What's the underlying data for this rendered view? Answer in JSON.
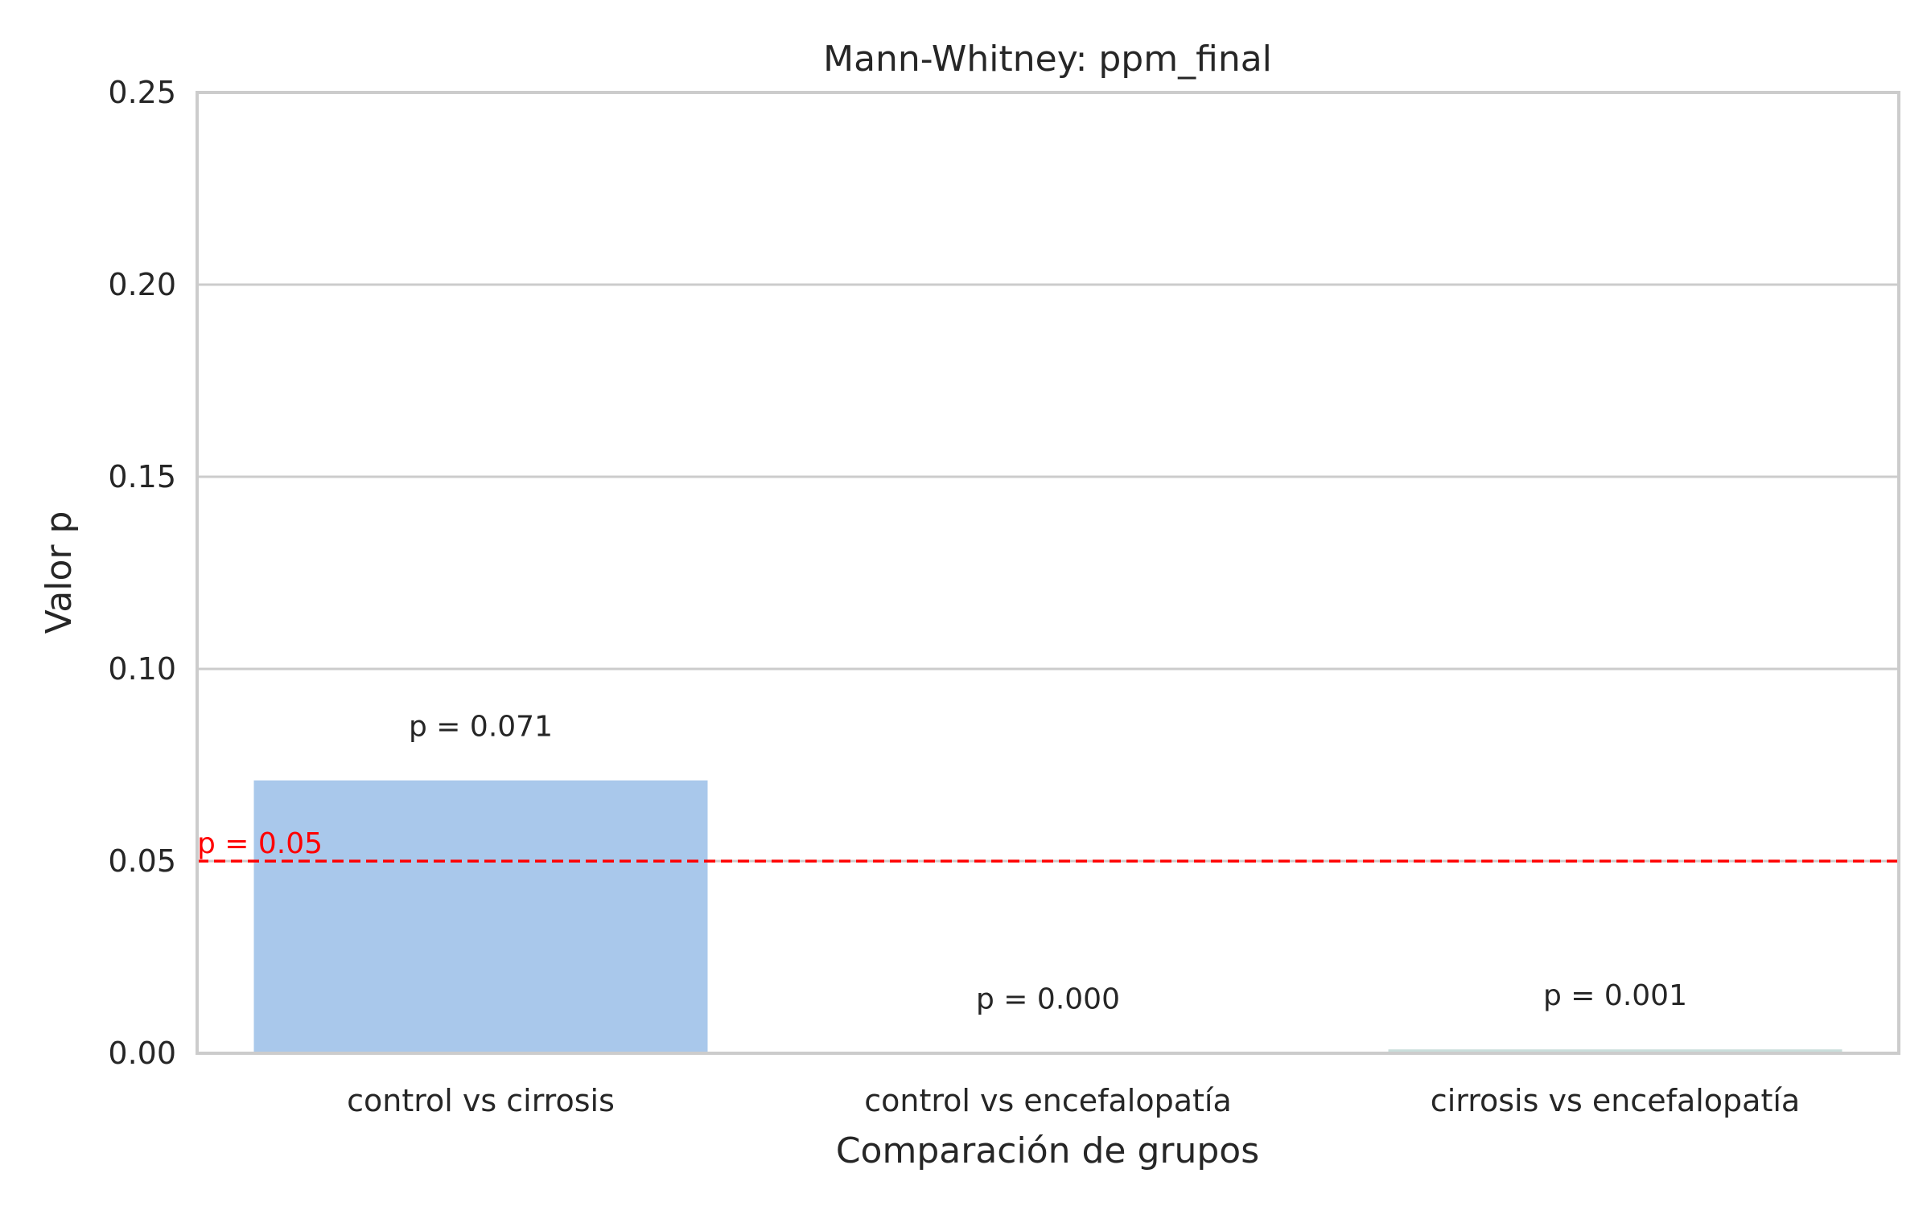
{
  "chart_data": {
    "type": "bar",
    "title": "Mann-Whitney: ppm_final",
    "xlabel": "Comparación de grupos",
    "ylabel": "Valor p",
    "categories": [
      "control vs cirrosis",
      "control vs encefalopatía",
      "cirrosis vs encefalopatía"
    ],
    "values": [
      0.071,
      0.0001,
      0.001
    ],
    "data_labels": [
      "p = 0.071",
      "p = 0.000",
      "p = 0.001"
    ],
    "ylim": [
      0,
      0.25
    ],
    "yticks": [
      0.0,
      0.05,
      0.1,
      0.15,
      0.2,
      0.25
    ],
    "ytick_labels": [
      "0.00",
      "0.05",
      "0.10",
      "0.15",
      "0.20",
      "0.25"
    ],
    "grid": "horizontal",
    "bar_colors": [
      "#a9c8eb",
      "#b4e6b4",
      "#c9dedb"
    ],
    "reference_line": {
      "value": 0.05,
      "label": "p = 0.05",
      "color": "#ff0000",
      "style": "dashed"
    }
  }
}
